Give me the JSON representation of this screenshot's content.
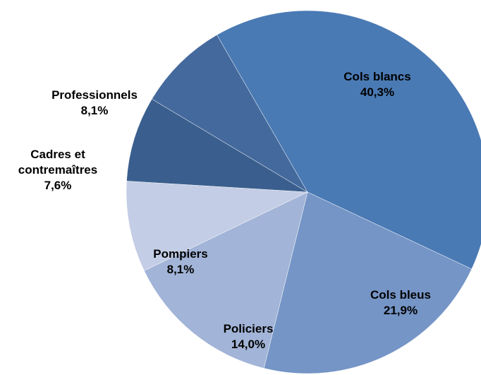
{
  "chart_data": {
    "type": "pie",
    "title": "",
    "slices": [
      {
        "label_lines": [
          "Cols blancs"
        ],
        "value": 40.3,
        "value_label": "40,3%",
        "color": "#4a7ab4"
      },
      {
        "label_lines": [
          "Cols bleus"
        ],
        "value": 21.9,
        "value_label": "21,9%",
        "color": "#7595c6"
      },
      {
        "label_lines": [
          "Policiers"
        ],
        "value": 14.0,
        "value_label": "14,0%",
        "color": "#a2b4d7"
      },
      {
        "label_lines": [
          "Pompiers"
        ],
        "value": 8.1,
        "value_label": "8,1%",
        "color": "#c3cde5"
      },
      {
        "label_lines": [
          "Cadres et",
          "contremaîtres"
        ],
        "value": 7.6,
        "value_label": "7,6%",
        "color": "#3a5f8e"
      },
      {
        "label_lines": [
          "Professionnels"
        ],
        "value": 8.1,
        "value_label": "8,1%",
        "color": "#44699d"
      }
    ]
  }
}
